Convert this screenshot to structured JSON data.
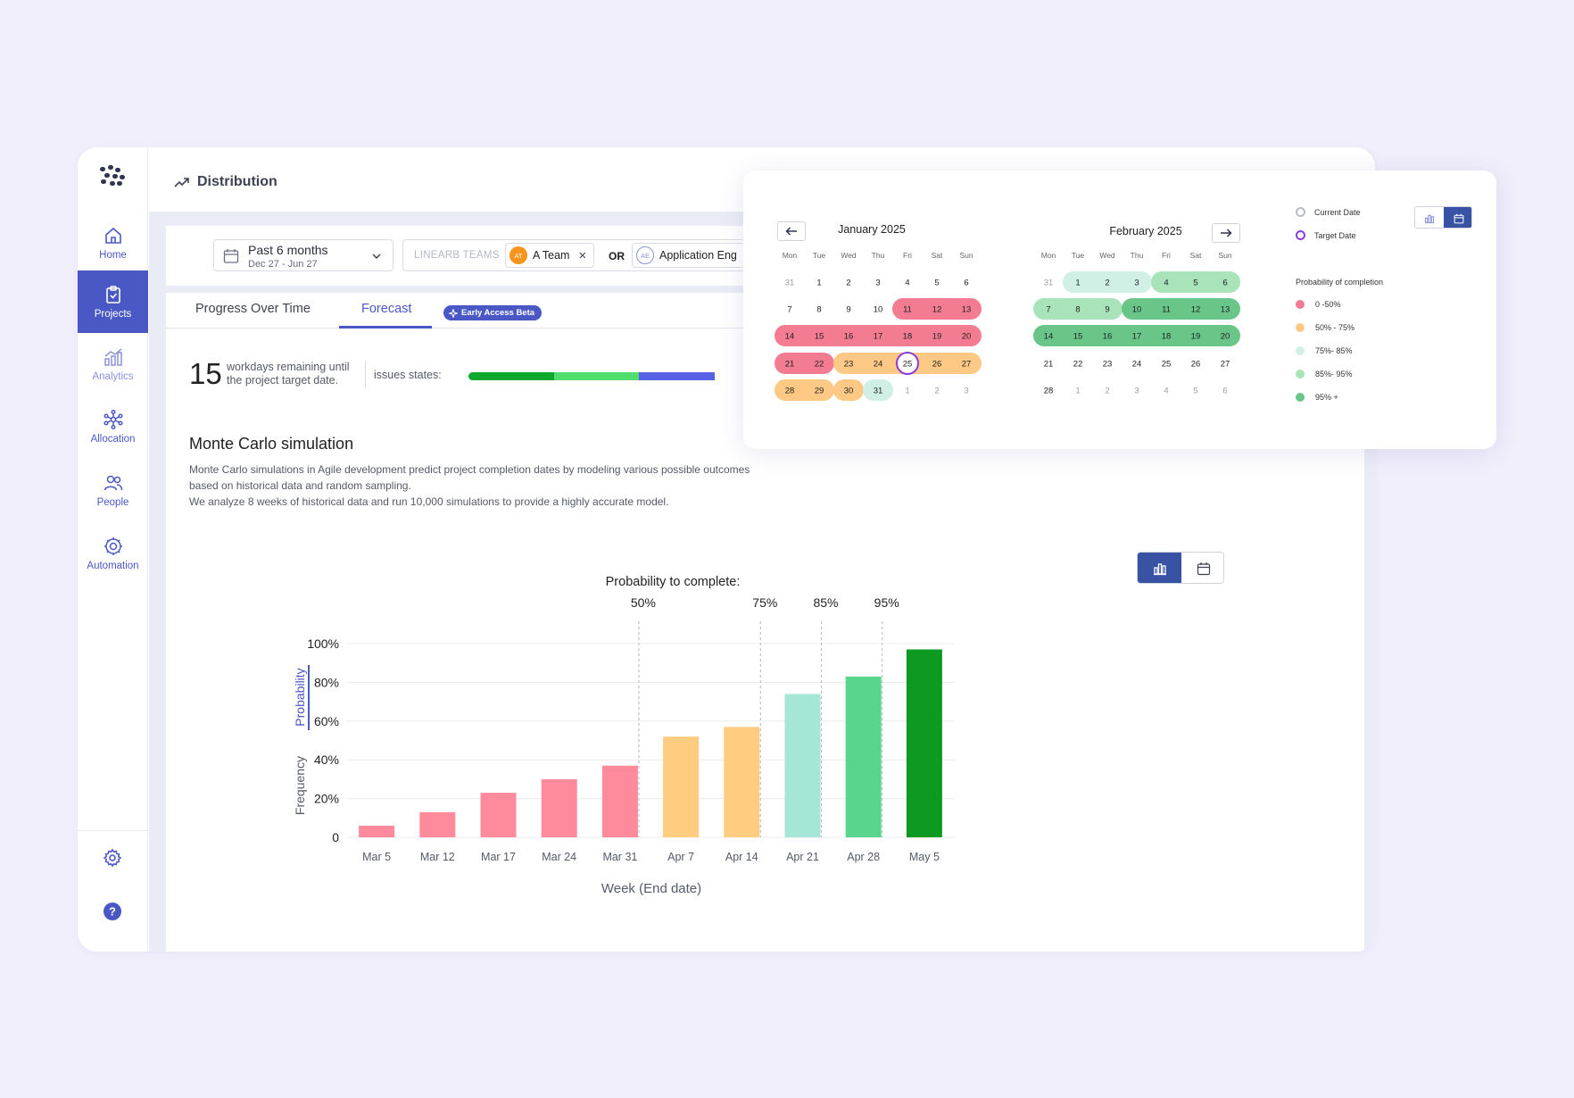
{
  "sidebar": {
    "items": [
      {
        "label": "Home"
      },
      {
        "label": "Projects"
      },
      {
        "label": "Analytics"
      },
      {
        "label": "Allocation"
      },
      {
        "label": "People"
      },
      {
        "label": "Automation"
      }
    ]
  },
  "header": {
    "title": "Distribution"
  },
  "filters": {
    "date_range": {
      "label": "Past 6 months",
      "sub": "Dec 27 - Jun 27"
    },
    "teams_label": "LINEARB TEAMS",
    "team1": {
      "initials": "AT",
      "name": "A Team",
      "close": "×"
    },
    "or": "OR",
    "team2": {
      "initials": "AE",
      "name": "Application Eng"
    }
  },
  "tabs": [
    {
      "label": "Progress Over Time"
    },
    {
      "label": "Forecast"
    }
  ],
  "beta_badge": "Early Access Beta",
  "summary": {
    "workdays": "15",
    "workdays_text": "workdays remaining until the project target date.",
    "issues_label": "issues states:"
  },
  "monte_carlo": {
    "title": "Monte Carlo simulation",
    "desc1": "Monte Carlo simulations in Agile development predict project completion dates by modeling various possible outcomes based on historical data and random sampling.",
    "desc2": "We analyze 8 weeks of historical data and run 10,000 simulations to provide a highly accurate model."
  },
  "colors": {
    "accent": "#4a58c6",
    "red": "#ff8a9c",
    "orange": "#ffcc80",
    "mint": "#a6e6d6",
    "green": "#58d68d",
    "dark_green": "#0d9a22",
    "cal_red": "#f37c93",
    "cal_orange": "#fdc984",
    "cal_mint": "#d0f0e6",
    "cal_lgreen": "#a8e3b9",
    "cal_dgreen": "#6ac688"
  },
  "chart_data": {
    "type": "bar",
    "title": "Probability to complete:",
    "xlabel": "Week (End date)",
    "ylabel_active": "Probability",
    "ylabel_alt": "Frequency",
    "yticks": [
      "100%",
      "80%",
      "60%",
      "40%",
      "20%",
      "0"
    ],
    "ylim": [
      0,
      100
    ],
    "categories": [
      "Mar 5",
      "Mar 12",
      "Mar 17",
      "Mar 24",
      "Mar 31",
      "Apr 7",
      "Apr 14",
      "Apr 21",
      "Apr 28",
      "May 5"
    ],
    "values": [
      6,
      13,
      23,
      30,
      37,
      52,
      57,
      74,
      83,
      97
    ],
    "bar_colors": [
      "#ff8a9c",
      "#ff8a9c",
      "#ff8a9c",
      "#ff8a9c",
      "#ff8a9c",
      "#ffcc80",
      "#ffcc80",
      "#a6e6d6",
      "#58d68d",
      "#0d9a22"
    ],
    "thresholds": [
      {
        "label": "50%",
        "after_category": "Mar 31"
      },
      {
        "label": "75%",
        "after_category": "Apr 14"
      },
      {
        "label": "85%",
        "after_category": "Apr 21"
      },
      {
        "label": "95%",
        "after_category": "Apr 28"
      }
    ],
    "grid": true
  },
  "popup": {
    "weekdays": [
      "Mon",
      "Tue",
      "Wed",
      "Thu",
      "Fri",
      "Sat",
      "Sun"
    ],
    "january": {
      "title": "January 2025",
      "weeks": [
        [
          "31",
          "1",
          "2",
          "3",
          "4",
          "5",
          "6"
        ],
        [
          "7",
          "8",
          "9",
          "10",
          "11",
          "12",
          "13"
        ],
        [
          "14",
          "15",
          "16",
          "17",
          "18",
          "19",
          "20"
        ],
        [
          "21",
          "22",
          "23",
          "24",
          "25",
          "26",
          "27"
        ],
        [
          "28",
          "29",
          "30",
          "31",
          "1",
          "2",
          "3"
        ]
      ]
    },
    "february": {
      "title": "February 2025",
      "weeks": [
        [
          "31",
          "1",
          "2",
          "3",
          "4",
          "5",
          "6"
        ],
        [
          "7",
          "8",
          "9",
          "10",
          "11",
          "12",
          "13"
        ],
        [
          "14",
          "15",
          "16",
          "17",
          "18",
          "19",
          "20"
        ],
        [
          "21",
          "22",
          "23",
          "24",
          "25",
          "26",
          "27"
        ],
        [
          "28",
          "1",
          "2",
          "3",
          "4",
          "5",
          "6"
        ]
      ]
    },
    "legend": {
      "current_date": "Current Date",
      "target_date": "Target Date",
      "prob_title": "Probability of completion",
      "items": [
        {
          "label": "0 -50%",
          "color": "#f37c93"
        },
        {
          "label": "50% - 75%",
          "color": "#fdc984"
        },
        {
          "label": "75%- 85%",
          "color": "#d0f0e6"
        },
        {
          "label": "85%- 95%",
          "color": "#a8e3b9"
        },
        {
          "label": "95% +",
          "color": "#6ac688"
        }
      ]
    }
  }
}
